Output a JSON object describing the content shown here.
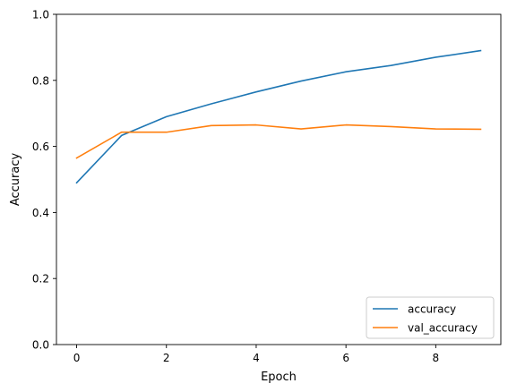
{
  "chart_data": {
    "type": "line",
    "title": "",
    "xlabel": "Epoch",
    "ylabel": "Accuracy",
    "xlim": [
      -0.45,
      9.45
    ],
    "ylim": [
      0,
      1
    ],
    "xticks": [
      0,
      2,
      4,
      6,
      8
    ],
    "xtick_labels": [
      "0",
      "2",
      "4",
      "6",
      "8"
    ],
    "yticks": [
      0.0,
      0.2,
      0.4,
      0.6,
      0.8,
      1.0
    ],
    "ytick_labels": [
      "0.0",
      "0.2",
      "0.4",
      "0.6",
      "0.8",
      "1.0"
    ],
    "grid": false,
    "legend_position": "lower-right",
    "x": [
      0,
      1,
      2,
      3,
      4,
      5,
      6,
      7,
      8,
      9
    ],
    "series": [
      {
        "name": "accuracy",
        "color": "#1f77b4",
        "values": [
          0.49,
          0.633,
          0.69,
          0.729,
          0.765,
          0.798,
          0.826,
          0.845,
          0.87,
          0.89
        ]
      },
      {
        "name": "val_accuracy",
        "color": "#ff7f0e",
        "values": [
          0.565,
          0.643,
          0.643,
          0.663,
          0.665,
          0.653,
          0.665,
          0.66,
          0.653,
          0.652
        ]
      }
    ]
  }
}
